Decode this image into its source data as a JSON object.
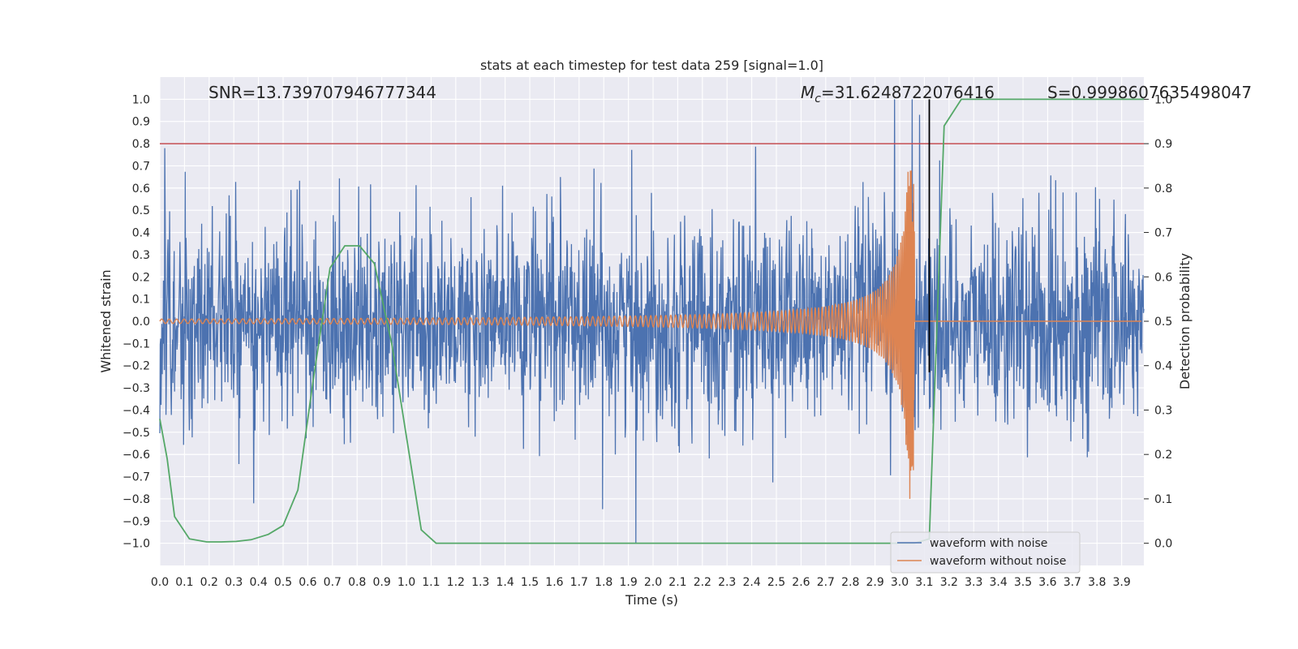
{
  "chart_data": {
    "type": "line",
    "title": "stats at each timestep for test data 259 [signal=1.0]",
    "xlabel": "Time (s)",
    "ylabel": "Whitened strain",
    "y2label": "Detection probability",
    "xlim": [
      0.0,
      3.99
    ],
    "ylim": [
      -1.1,
      1.1
    ],
    "y2lim": [
      -0.05,
      1.05
    ],
    "xticks": [
      "0.0",
      "0.1",
      "0.2",
      "0.3",
      "0.4",
      "0.5",
      "0.6",
      "0.7",
      "0.8",
      "0.9",
      "1.0",
      "1.1",
      "1.2",
      "1.3",
      "1.4",
      "1.5",
      "1.6",
      "1.7",
      "1.8",
      "1.9",
      "2.0",
      "2.1",
      "2.2",
      "2.3",
      "2.4",
      "2.5",
      "2.6",
      "2.7",
      "2.8",
      "2.9",
      "3.0",
      "3.1",
      "3.2",
      "3.3",
      "3.4",
      "3.5",
      "3.6",
      "3.7",
      "3.8",
      "3.9"
    ],
    "yticks": [
      "1.0",
      "0.9",
      "0.8",
      "0.7",
      "0.6",
      "0.5",
      "0.4",
      "0.3",
      "0.2",
      "0.1",
      "0.0",
      "−0.1",
      "−0.2",
      "−0.3",
      "−0.4",
      "−0.5",
      "−0.6",
      "−0.7",
      "−0.8",
      "−0.9",
      "−1.0"
    ],
    "y2ticks": [
      "1.0",
      "0.9",
      "0.8",
      "0.7",
      "0.6",
      "0.5",
      "0.4",
      "0.3",
      "0.2",
      "0.1",
      "0.0"
    ],
    "grid": true,
    "annotations": {
      "snr": "SNR=13.739707946777344",
      "mc_symbol": "M",
      "mc_sub": "c",
      "mc_value": "=31.6248722076416",
      "s": "S=0.9998607635498047"
    },
    "threshold_line": {
      "y": 0.8,
      "color": "#c44e52"
    },
    "merger_line": {
      "x": 3.12,
      "y_from": -0.23,
      "y_to": 1.0,
      "color": "#000000"
    },
    "series": [
      {
        "name": "waveform with noise",
        "color": "#4c72b0",
        "kind": "noise",
        "amplitude_envelope": 0.55,
        "peak_values": [
          {
            "x": 0.02,
            "y": 0.78
          },
          {
            "x": 1.93,
            "y": -1.0
          },
          {
            "x": 2.98,
            "y": 1.0
          },
          {
            "x": 3.05,
            "y": 1.0
          },
          {
            "x": 3.08,
            "y": 0.93
          },
          {
            "x": 0.38,
            "y": -0.82
          }
        ]
      },
      {
        "name": "waveform without noise",
        "color": "#dd8452",
        "kind": "chirp",
        "t_merger": 3.06,
        "base_amplitude": 0.01,
        "peak_amplitude": 0.68,
        "min_value": -0.8
      },
      {
        "name": "detection probability",
        "color": "#55a868",
        "axis": "y2",
        "x": [
          0.0,
          0.03,
          0.06,
          0.12,
          0.19,
          0.25,
          0.31,
          0.37,
          0.44,
          0.5,
          0.56,
          0.62,
          0.69,
          0.75,
          0.81,
          0.87,
          0.94,
          1.0,
          1.06,
          1.12,
          1.18,
          3.06,
          3.12,
          3.18,
          3.25,
          3.3,
          3.99
        ],
        "values": [
          0.28,
          0.19,
          0.06,
          0.01,
          0.003,
          0.003,
          0.004,
          0.008,
          0.02,
          0.04,
          0.12,
          0.36,
          0.62,
          0.67,
          0.67,
          0.63,
          0.45,
          0.24,
          0.03,
          0.0,
          0.0,
          0.0,
          0.01,
          0.94,
          1.0,
          1.0,
          1.0
        ]
      }
    ],
    "legend": {
      "placement": "bottom-right",
      "entries": [
        {
          "label": "waveform with noise",
          "color": "#4c72b0"
        },
        {
          "label": "waveform without noise",
          "color": "#dd8452"
        }
      ]
    }
  }
}
